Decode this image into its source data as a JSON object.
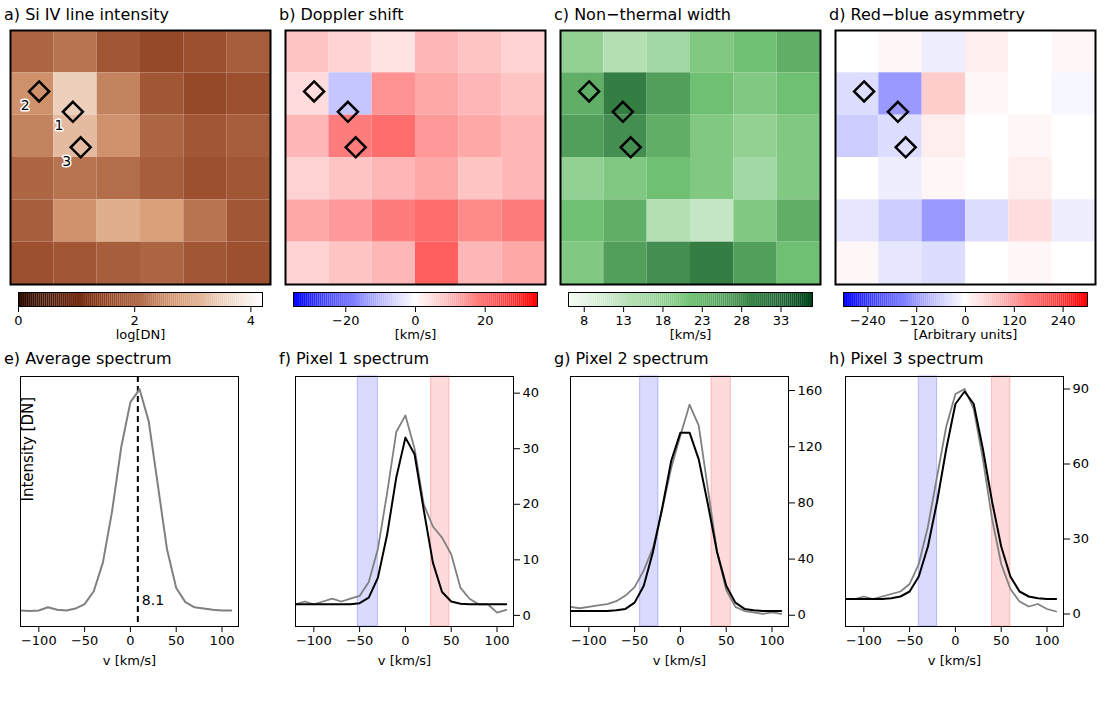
{
  "chart_data": [
    {
      "type": "heatmap",
      "title": "a) Si IV line intensity",
      "xlim": [
        0,
        6
      ],
      "ylim": [
        6,
        0
      ],
      "tick_labels": false,
      "cells": [
        [
          2.0,
          2.2,
          1.8,
          1.6,
          1.7,
          1.9
        ],
        [
          2.6,
          3.5,
          2.4,
          1.8,
          1.6,
          1.7
        ],
        [
          2.4,
          3.2,
          2.6,
          2.0,
          1.8,
          1.9
        ],
        [
          2.0,
          2.2,
          2.1,
          1.9,
          1.7,
          1.8
        ],
        [
          1.9,
          2.6,
          3.0,
          2.8,
          2.2,
          1.8
        ],
        [
          1.7,
          1.8,
          1.9,
          2.0,
          1.8,
          1.7
        ]
      ],
      "marker": "diamond",
      "markers": [
        {
          "label": "1",
          "x": 1.44,
          "y": 1.92
        },
        {
          "label": "2",
          "x": 0.66,
          "y": 1.44
        },
        {
          "label": "3",
          "x": 1.62,
          "y": 2.76
        }
      ],
      "colorbar": {
        "range": [
          0,
          4.2
        ],
        "ticks": [
          0,
          2,
          4
        ],
        "label": "log[DN]",
        "colors": [
          "#2a0800",
          "#8b3a1a",
          "#d9a07a",
          "#ffffff"
        ]
      }
    },
    {
      "type": "heatmap",
      "title": "b) Doppler shift",
      "xlim": [
        0,
        6
      ],
      "ylim": [
        6,
        0
      ],
      "tick_labels": false,
      "cells": [
        [
          8,
          6,
          4,
          10,
          8,
          6
        ],
        [
          5,
          -8,
          15,
          12,
          10,
          8
        ],
        [
          10,
          18,
          20,
          14,
          12,
          10
        ],
        [
          6,
          8,
          10,
          12,
          8,
          10
        ],
        [
          12,
          14,
          18,
          20,
          16,
          18
        ],
        [
          6,
          8,
          10,
          22,
          10,
          12
        ]
      ],
      "marker": "diamond",
      "markers": [
        {
          "x": 1.44,
          "y": 1.92
        },
        {
          "x": 0.66,
          "y": 1.44
        },
        {
          "x": 1.62,
          "y": 2.76
        }
      ],
      "colorbar": {
        "range": [
          -35,
          35
        ],
        "ticks": [
          -20,
          0,
          20
        ],
        "label": "[km/s]",
        "colors": [
          "#0000ff",
          "#ffffff",
          "#ff0000"
        ]
      }
    },
    {
      "type": "heatmap",
      "title": "c) Non−thermal width",
      "xlim": [
        0,
        6
      ],
      "ylim": [
        6,
        0
      ],
      "tick_labels": false,
      "cells": [
        [
          18,
          14,
          16,
          20,
          22,
          24
        ],
        [
          24,
          30,
          26,
          22,
          20,
          22
        ],
        [
          26,
          28,
          24,
          20,
          18,
          20
        ],
        [
          18,
          20,
          22,
          20,
          16,
          20
        ],
        [
          22,
          24,
          14,
          12,
          20,
          24
        ],
        [
          20,
          26,
          28,
          30,
          26,
          22
        ]
      ],
      "marker": "diamond",
      "markers": [
        {
          "x": 1.44,
          "y": 1.92
        },
        {
          "x": 0.66,
          "y": 1.44
        },
        {
          "x": 1.62,
          "y": 2.76
        }
      ],
      "colorbar": {
        "range": [
          6,
          37
        ],
        "ticks": [
          8,
          13,
          18,
          23,
          28,
          33
        ],
        "label": "[km/s]",
        "colors": [
          "#f7fcf5",
          "#74c476",
          "#00441b"
        ]
      }
    },
    {
      "type": "heatmap",
      "title": "d) Red−blue asymmetry",
      "xlim": [
        0,
        6
      ],
      "ylim": [
        6,
        0
      ],
      "tick_labels": false,
      "cells": [
        [
          0,
          10,
          -20,
          20,
          0,
          10
        ],
        [
          -40,
          -120,
          60,
          10,
          0,
          -10
        ],
        [
          -60,
          -40,
          20,
          0,
          10,
          0
        ],
        [
          0,
          -20,
          10,
          0,
          20,
          0
        ],
        [
          -30,
          -60,
          -120,
          -40,
          40,
          -20
        ],
        [
          10,
          -30,
          -40,
          0,
          10,
          0
        ]
      ],
      "marker": "diamond",
      "markers": [
        {
          "x": 1.44,
          "y": 1.92
        },
        {
          "x": 0.66,
          "y": 1.44
        },
        {
          "x": 1.62,
          "y": 2.76
        }
      ],
      "colorbar": {
        "range": [
          -300,
          300
        ],
        "ticks": [
          -240,
          -120,
          0,
          120,
          240
        ],
        "label": "[Arbitrary units]",
        "colors": [
          "#0000ff",
          "#ffffff",
          "#ff0000"
        ]
      }
    },
    {
      "type": "line",
      "title": "e) Average spectrum",
      "xlabel": "v [km/s]",
      "ylabel": "Intensity [DN]",
      "xlim": [
        -120,
        118
      ],
      "xticks": [
        -100,
        -50,
        0,
        50,
        100
      ],
      "ylim": [
        -1,
        38
      ],
      "yticks": [],
      "tick_labels": "x",
      "x": [
        -120,
        -110,
        -100,
        -90,
        -80,
        -70,
        -60,
        -50,
        -40,
        -30,
        -20,
        -10,
        0,
        10,
        20,
        30,
        40,
        50,
        60,
        70,
        80,
        90,
        100,
        110
      ],
      "series": [
        {
          "color": "gray",
          "values": [
            1.5,
            1.4,
            1.5,
            2.0,
            1.6,
            1.5,
            1.8,
            2.5,
            4.5,
            9,
            17,
            27,
            34,
            36,
            31,
            21,
            11,
            5,
            2.8,
            2,
            1.8,
            1.6,
            1.5,
            1.5
          ]
        }
      ],
      "annotation": {
        "value": 8.1,
        "label": "8.1",
        "line_style": "dashed"
      }
    },
    {
      "type": "line",
      "title": "f) Pixel 1 spectrum",
      "xlabel": "v [km/s]",
      "xlim": [
        -120,
        118
      ],
      "xticks": [
        -100,
        -50,
        0,
        50,
        100
      ],
      "ylim": [
        -2,
        43
      ],
      "yticks": [
        0,
        10,
        20,
        30,
        40
      ],
      "x": [
        -120,
        -110,
        -100,
        -90,
        -80,
        -70,
        -60,
        -50,
        -40,
        -30,
        -20,
        -10,
        0,
        10,
        20,
        30,
        40,
        50,
        60,
        70,
        80,
        90,
        100,
        110
      ],
      "series": [
        {
          "color": "gray",
          "values": [
            2,
            2.5,
            2,
            2.5,
            3,
            2.5,
            3,
            3.5,
            6,
            12,
            22,
            33,
            36,
            30,
            20,
            16,
            14,
            11,
            5,
            3,
            2,
            2,
            0.5,
            1
          ]
        },
        {
          "color": "black",
          "values": [
            2,
            2,
            2,
            2,
            2,
            2,
            2,
            2.2,
            3.2,
            6.8,
            14.5,
            24.8,
            32,
            29,
            19,
            9.5,
            4.2,
            2.5,
            2.1,
            2,
            2,
            2,
            2,
            2
          ]
        }
      ],
      "bands": [
        {
          "range": [
            -52,
            -30
          ],
          "color": "blue"
        },
        {
          "range": [
            28,
            48
          ],
          "color": "red"
        }
      ]
    },
    {
      "type": "line",
      "title": "g) Pixel 2 spectrum",
      "xlabel": "v [km/s]",
      "xlim": [
        -120,
        118
      ],
      "xticks": [
        -100,
        -50,
        0,
        50,
        100
      ],
      "ylim": [
        -8,
        170
      ],
      "yticks": [
        0,
        40,
        80,
        120,
        160
      ],
      "x": [
        -120,
        -110,
        -100,
        -90,
        -80,
        -70,
        -60,
        -50,
        -40,
        -30,
        -20,
        -10,
        0,
        10,
        20,
        30,
        40,
        50,
        60,
        70,
        80,
        90,
        100,
        110
      ],
      "series": [
        {
          "color": "gray",
          "values": [
            6,
            5,
            6,
            7,
            8,
            10,
            14,
            20,
            32,
            48,
            75,
            105,
            128,
            150,
            135,
            90,
            45,
            18,
            6,
            3,
            2,
            1,
            2,
            1
          ]
        },
        {
          "color": "black",
          "values": [
            3,
            3,
            3,
            3,
            3,
            3.5,
            4.5,
            9,
            21,
            45,
            76,
            110,
            130,
            130,
            111,
            79,
            45,
            21,
            9,
            4.5,
            3.5,
            3,
            3,
            3
          ]
        }
      ],
      "bands": [
        {
          "range": [
            -44,
            -24
          ],
          "color": "blue"
        },
        {
          "range": [
            34,
            55
          ],
          "color": "red"
        }
      ]
    },
    {
      "type": "line",
      "title": "h) Pixel 3 spectrum",
      "xlabel": "v [km/s]",
      "xlim": [
        -120,
        118
      ],
      "xticks": [
        -100,
        -50,
        0,
        50,
        100
      ],
      "ylim": [
        -5,
        95
      ],
      "yticks": [
        0,
        30,
        60,
        90
      ],
      "x": [
        -120,
        -110,
        -100,
        -90,
        -80,
        -70,
        -60,
        -50,
        -40,
        -30,
        -20,
        -10,
        0,
        10,
        20,
        30,
        40,
        50,
        60,
        70,
        80,
        90,
        100,
        110
      ],
      "series": [
        {
          "color": "gray",
          "values": [
            6,
            6,
            7,
            6,
            7,
            8,
            9,
            12,
            20,
            35,
            55,
            75,
            88,
            90,
            82,
            62,
            38,
            20,
            10,
            5,
            3,
            4,
            2,
            1
          ]
        },
        {
          "color": "black",
          "values": [
            6,
            6,
            6,
            6,
            6,
            6.3,
            7,
            9,
            15,
            27,
            45,
            66,
            84,
            89,
            84,
            66,
            45,
            27,
            15,
            9,
            7,
            6.3,
            6,
            6
          ]
        }
      ],
      "bands": [
        {
          "range": [
            -40,
            -20
          ],
          "color": "blue"
        },
        {
          "range": [
            40,
            60
          ],
          "color": "red"
        }
      ]
    }
  ]
}
